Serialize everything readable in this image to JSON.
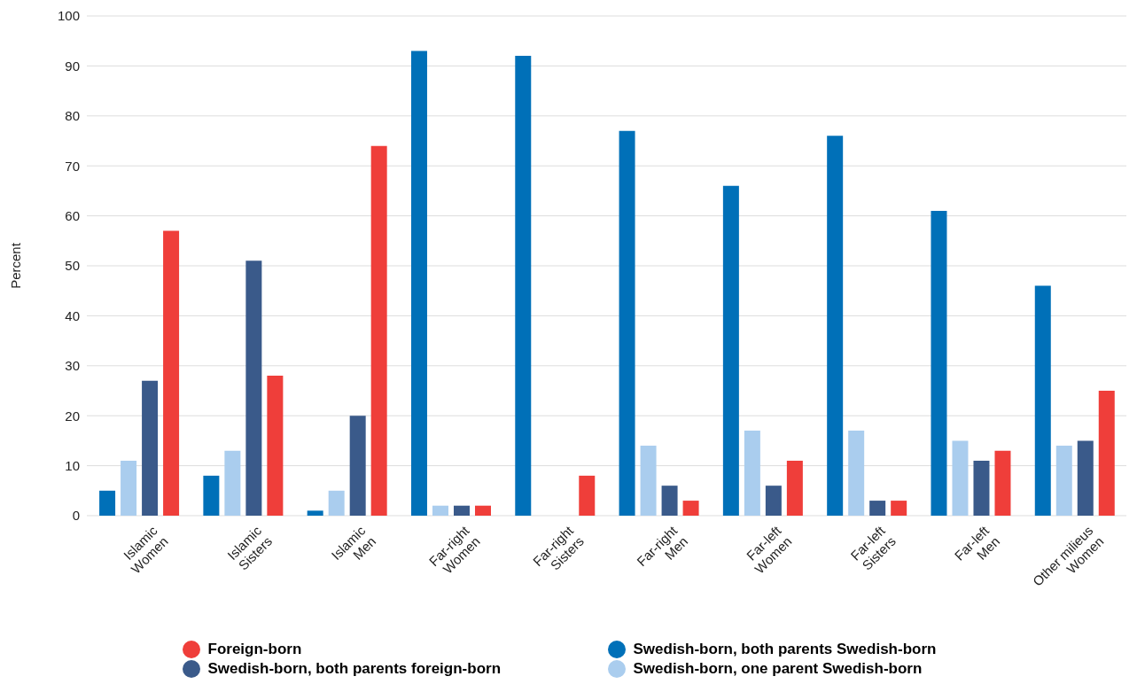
{
  "chart_data": {
    "type": "bar",
    "ylabel": "Percent",
    "categories": [
      "Islamic\nWomen",
      "Islamic\nSisters",
      "Islamic\nMen",
      "Far-right\nWomen",
      "Far-right\nSisters",
      "Far-right\nMen",
      "Far-left\nWomen",
      "Far-left\nSisters",
      "Far-left\nMen",
      "Other milieus\nWomen"
    ],
    "series": [
      {
        "name": "Swedish-born, both parents Swedish-born",
        "color": "#0070b8",
        "values": [
          5,
          8,
          1,
          93,
          92,
          77,
          66,
          76,
          61,
          46
        ]
      },
      {
        "name": "Swedish-born, one parent Swedish-born",
        "color": "#aacdee",
        "values": [
          11,
          13,
          5,
          2,
          0,
          14,
          17,
          17,
          15,
          14
        ]
      },
      {
        "name": "Swedish-born, both parents foreign-born",
        "color": "#3a5a8a",
        "values": [
          27,
          51,
          20,
          2,
          0,
          6,
          6,
          3,
          11,
          15
        ]
      },
      {
        "name": "Foreign-born",
        "color": "#ef3e3a",
        "values": [
          57,
          28,
          74,
          2,
          8,
          3,
          11,
          3,
          13,
          25
        ]
      }
    ],
    "ylim": [
      0,
      100
    ],
    "yticks": [
      0,
      10,
      20,
      30,
      40,
      50,
      60,
      70,
      80,
      90,
      100
    ],
    "grid": "y",
    "legend": "bottom"
  }
}
